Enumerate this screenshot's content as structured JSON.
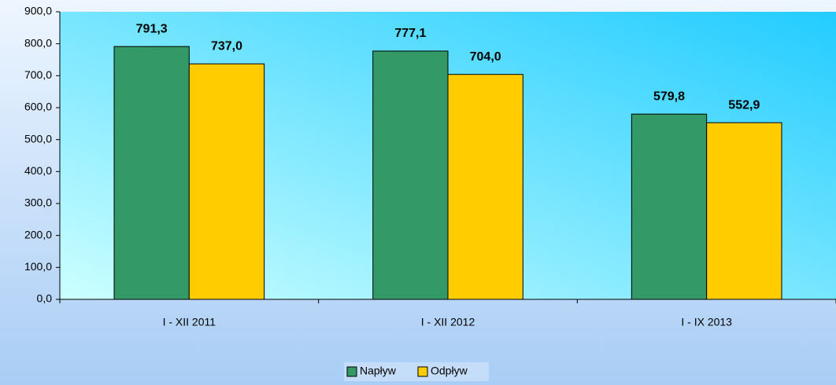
{
  "chart_data": {
    "type": "bar",
    "categories": [
      "I - XII 2011",
      "I - XII 2012",
      "I - IX 2013"
    ],
    "series": [
      {
        "name": "Napływ",
        "color": "#339966",
        "values": [
          791.3,
          777.1,
          579.8
        ],
        "value_labels": [
          "791,3",
          "777,1",
          "579,8"
        ]
      },
      {
        "name": "Odpływ",
        "color": "#ffcc00",
        "values": [
          737.0,
          704.0,
          552.9
        ],
        "value_labels": [
          "737,0",
          "704,0",
          "552,9"
        ]
      }
    ],
    "ylim": [
      0,
      900
    ],
    "yticks": [
      {
        "value": 0,
        "label": "0,0"
      },
      {
        "value": 100,
        "label": "100,0"
      },
      {
        "value": 200,
        "label": "200,0"
      },
      {
        "value": 300,
        "label": "300,0"
      },
      {
        "value": 400,
        "label": "400,0"
      },
      {
        "value": 500,
        "label": "500,0"
      },
      {
        "value": 600,
        "label": "600,0"
      },
      {
        "value": 700,
        "label": "700,0"
      },
      {
        "value": 800,
        "label": "800,0"
      },
      {
        "value": 900,
        "label": "900,0"
      }
    ],
    "legend": "bottom"
  }
}
